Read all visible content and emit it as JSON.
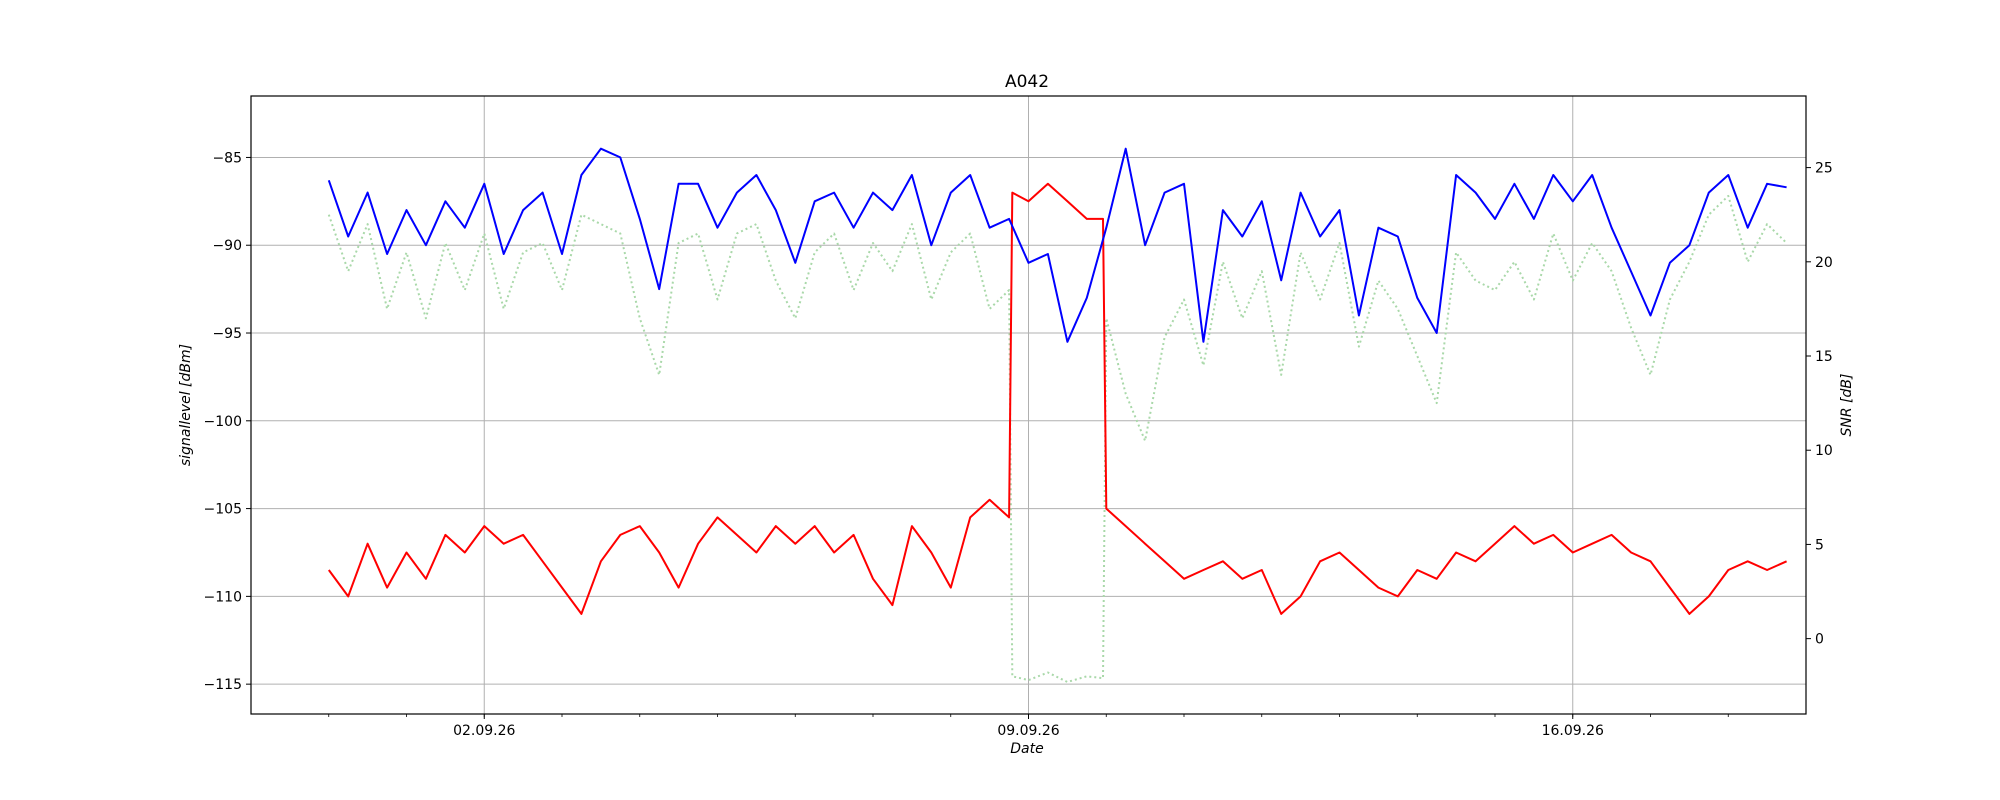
{
  "chart_data": {
    "type": "line",
    "title": "A042",
    "xlabel": "Date",
    "ylabel": "signallevel [dBm]",
    "y2label": "SNR [dB]",
    "grid": true,
    "x_range": [
      "2026-08-30",
      "2026-09-19"
    ],
    "ylim": [
      -116.7,
      -81.5
    ],
    "y2lim": [
      -4.0,
      28.8
    ],
    "x_ticks": [
      {
        "date": "2026-09-02",
        "label": "02.09.26"
      },
      {
        "date": "2026-09-09",
        "label": "09.09.26"
      },
      {
        "date": "2026-09-16",
        "label": "16.09.26"
      }
    ],
    "y_ticks": [
      -85,
      -90,
      -95,
      -100,
      -105,
      -110,
      -115
    ],
    "y_tick_labels": [
      "−85",
      "−90",
      "−95",
      "−100",
      "−105",
      "−110",
      "−115"
    ],
    "y2_ticks": [
      25,
      20,
      15,
      10,
      5,
      0
    ],
    "y2_tick_labels": [
      "25",
      "20",
      "15",
      "10",
      "5",
      "0"
    ],
    "series": [
      {
        "axis": "left",
        "color": "#0000ff",
        "style": "solid",
        "points": [
          [
            "2026-08-31 00:00",
            -86.3
          ],
          [
            "2026-08-31 06:00",
            -89.5
          ],
          [
            "2026-08-31 12:00",
            -87.0
          ],
          [
            "2026-08-31 18:00",
            -90.5
          ],
          [
            "2026-09-01 00:00",
            -88.0
          ],
          [
            "2026-09-01 06:00",
            -90.0
          ],
          [
            "2026-09-01 12:00",
            -87.5
          ],
          [
            "2026-09-01 18:00",
            -89.0
          ],
          [
            "2026-09-02 00:00",
            -86.5
          ],
          [
            "2026-09-02 06:00",
            -90.5
          ],
          [
            "2026-09-02 12:00",
            -88.0
          ],
          [
            "2026-09-02 18:00",
            -87.0
          ],
          [
            "2026-09-03 00:00",
            -90.5
          ],
          [
            "2026-09-03 06:00",
            -86.0
          ],
          [
            "2026-09-03 12:00",
            -84.5
          ],
          [
            "2026-09-03 18:00",
            -85.0
          ],
          [
            "2026-09-04 00:00",
            -88.5
          ],
          [
            "2026-09-04 06:00",
            -92.5
          ],
          [
            "2026-09-04 12:00",
            -86.5
          ],
          [
            "2026-09-04 18:00",
            -86.5
          ],
          [
            "2026-09-05 00:00",
            -89.0
          ],
          [
            "2026-09-05 06:00",
            -87.0
          ],
          [
            "2026-09-05 12:00",
            -86.0
          ],
          [
            "2026-09-05 18:00",
            -88.0
          ],
          [
            "2026-09-06 00:00",
            -91.0
          ],
          [
            "2026-09-06 06:00",
            -87.5
          ],
          [
            "2026-09-06 12:00",
            -87.0
          ],
          [
            "2026-09-06 18:00",
            -89.0
          ],
          [
            "2026-09-07 00:00",
            -87.0
          ],
          [
            "2026-09-07 06:00",
            -88.0
          ],
          [
            "2026-09-07 12:00",
            -86.0
          ],
          [
            "2026-09-07 18:00",
            -90.0
          ],
          [
            "2026-09-08 00:00",
            -87.0
          ],
          [
            "2026-09-08 06:00",
            -86.0
          ],
          [
            "2026-09-08 12:00",
            -89.0
          ],
          [
            "2026-09-08 18:00",
            -88.5
          ],
          [
            "2026-09-09 00:00",
            -91.0
          ],
          [
            "2026-09-09 06:00",
            -90.5
          ],
          [
            "2026-09-09 12:00",
            -95.5
          ],
          [
            "2026-09-09 18:00",
            -93.0
          ],
          [
            "2026-09-10 00:00",
            -89.0
          ],
          [
            "2026-09-10 06:00",
            -84.5
          ],
          [
            "2026-09-10 12:00",
            -90.0
          ],
          [
            "2026-09-10 18:00",
            -87.0
          ],
          [
            "2026-09-11 00:00",
            -86.5
          ],
          [
            "2026-09-11 06:00",
            -95.5
          ],
          [
            "2026-09-11 12:00",
            -88.0
          ],
          [
            "2026-09-11 18:00",
            -89.5
          ],
          [
            "2026-09-12 00:00",
            -87.5
          ],
          [
            "2026-09-12 06:00",
            -92.0
          ],
          [
            "2026-09-12 12:00",
            -87.0
          ],
          [
            "2026-09-12 18:00",
            -89.5
          ],
          [
            "2026-09-13 00:00",
            -88.0
          ],
          [
            "2026-09-13 06:00",
            -94.0
          ],
          [
            "2026-09-13 12:00",
            -89.0
          ],
          [
            "2026-09-13 18:00",
            -89.5
          ],
          [
            "2026-09-14 00:00",
            -93.0
          ],
          [
            "2026-09-14 06:00",
            -95.0
          ],
          [
            "2026-09-14 12:00",
            -86.0
          ],
          [
            "2026-09-14 18:00",
            -87.0
          ],
          [
            "2026-09-15 00:00",
            -88.5
          ],
          [
            "2026-09-15 06:00",
            -86.5
          ],
          [
            "2026-09-15 12:00",
            -88.5
          ],
          [
            "2026-09-15 18:00",
            -86.0
          ],
          [
            "2026-09-16 00:00",
            -87.5
          ],
          [
            "2026-09-16 06:00",
            -86.0
          ],
          [
            "2026-09-16 12:00",
            -89.0
          ],
          [
            "2026-09-16 18:00",
            -91.5
          ],
          [
            "2026-09-17 00:00",
            -94.0
          ],
          [
            "2026-09-17 06:00",
            -91.0
          ],
          [
            "2026-09-17 12:00",
            -90.0
          ],
          [
            "2026-09-17 18:00",
            -87.0
          ],
          [
            "2026-09-18 00:00",
            -86.0
          ],
          [
            "2026-09-18 06:00",
            -89.0
          ],
          [
            "2026-09-18 12:00",
            -86.5
          ],
          [
            "2026-09-18 18:00",
            -86.7
          ]
        ]
      },
      {
        "axis": "left",
        "color": "#ff0000",
        "style": "solid",
        "points": [
          [
            "2026-08-31 00:00",
            -108.5
          ],
          [
            "2026-08-31 06:00",
            -110.0
          ],
          [
            "2026-08-31 12:00",
            -107.0
          ],
          [
            "2026-08-31 18:00",
            -109.5
          ],
          [
            "2026-09-01 00:00",
            -107.5
          ],
          [
            "2026-09-01 06:00",
            -109.0
          ],
          [
            "2026-09-01 12:00",
            -106.5
          ],
          [
            "2026-09-01 18:00",
            -107.5
          ],
          [
            "2026-09-02 00:00",
            -106.0
          ],
          [
            "2026-09-02 06:00",
            -107.0
          ],
          [
            "2026-09-02 12:00",
            -106.5
          ],
          [
            "2026-09-02 18:00",
            -108.0
          ],
          [
            "2026-09-03 00:00",
            -109.5
          ],
          [
            "2026-09-03 06:00",
            -111.0
          ],
          [
            "2026-09-03 12:00",
            -108.0
          ],
          [
            "2026-09-03 18:00",
            -106.5
          ],
          [
            "2026-09-04 00:00",
            -106.0
          ],
          [
            "2026-09-04 06:00",
            -107.5
          ],
          [
            "2026-09-04 12:00",
            -109.5
          ],
          [
            "2026-09-04 18:00",
            -107.0
          ],
          [
            "2026-09-05 00:00",
            -105.5
          ],
          [
            "2026-09-05 06:00",
            -106.5
          ],
          [
            "2026-09-05 12:00",
            -107.5
          ],
          [
            "2026-09-05 18:00",
            -106.0
          ],
          [
            "2026-09-06 00:00",
            -107.0
          ],
          [
            "2026-09-06 06:00",
            -106.0
          ],
          [
            "2026-09-06 12:00",
            -107.5
          ],
          [
            "2026-09-06 18:00",
            -106.5
          ],
          [
            "2026-09-07 00:00",
            -109.0
          ],
          [
            "2026-09-07 06:00",
            -110.5
          ],
          [
            "2026-09-07 12:00",
            -106.0
          ],
          [
            "2026-09-07 18:00",
            -107.5
          ],
          [
            "2026-09-08 00:00",
            -109.5
          ],
          [
            "2026-09-08 06:00",
            -105.5
          ],
          [
            "2026-09-08 12:00",
            -104.5
          ],
          [
            "2026-09-08 18:00",
            -105.5
          ],
          [
            "2026-09-08 19:00",
            -87.0
          ],
          [
            "2026-09-09 00:00",
            -87.5
          ],
          [
            "2026-09-09 06:00",
            -86.5
          ],
          [
            "2026-09-09 12:00",
            -87.5
          ],
          [
            "2026-09-09 18:00",
            -88.5
          ],
          [
            "2026-09-09 23:00",
            -88.5
          ],
          [
            "2026-09-10 00:00",
            -105.0
          ],
          [
            "2026-09-10 06:00",
            -106.0
          ],
          [
            "2026-09-10 12:00",
            -107.0
          ],
          [
            "2026-09-10 18:00",
            -108.0
          ],
          [
            "2026-09-11 00:00",
            -109.0
          ],
          [
            "2026-09-11 06:00",
            -108.5
          ],
          [
            "2026-09-11 12:00",
            -108.0
          ],
          [
            "2026-09-11 18:00",
            -109.0
          ],
          [
            "2026-09-12 00:00",
            -108.5
          ],
          [
            "2026-09-12 06:00",
            -111.0
          ],
          [
            "2026-09-12 12:00",
            -110.0
          ],
          [
            "2026-09-12 18:00",
            -108.0
          ],
          [
            "2026-09-13 00:00",
            -107.5
          ],
          [
            "2026-09-13 06:00",
            -108.5
          ],
          [
            "2026-09-13 12:00",
            -109.5
          ],
          [
            "2026-09-13 18:00",
            -110.0
          ],
          [
            "2026-09-14 00:00",
            -108.5
          ],
          [
            "2026-09-14 06:00",
            -109.0
          ],
          [
            "2026-09-14 12:00",
            -107.5
          ],
          [
            "2026-09-14 18:00",
            -108.0
          ],
          [
            "2026-09-15 00:00",
            -107.0
          ],
          [
            "2026-09-15 06:00",
            -106.0
          ],
          [
            "2026-09-15 12:00",
            -107.0
          ],
          [
            "2026-09-15 18:00",
            -106.5
          ],
          [
            "2026-09-16 00:00",
            -107.5
          ],
          [
            "2026-09-16 06:00",
            -107.0
          ],
          [
            "2026-09-16 12:00",
            -106.5
          ],
          [
            "2026-09-16 18:00",
            -107.5
          ],
          [
            "2026-09-17 00:00",
            -108.0
          ],
          [
            "2026-09-17 06:00",
            -109.5
          ],
          [
            "2026-09-17 12:00",
            -111.0
          ],
          [
            "2026-09-17 18:00",
            -110.0
          ],
          [
            "2026-09-18 00:00",
            -108.5
          ],
          [
            "2026-09-18 06:00",
            -108.0
          ],
          [
            "2026-09-18 12:00",
            -108.5
          ],
          [
            "2026-09-18 18:00",
            -108.0
          ]
        ]
      },
      {
        "axis": "right",
        "color": "#a9d8a9",
        "style": "dotted",
        "points": [
          [
            "2026-08-31 00:00",
            22.5
          ],
          [
            "2026-08-31 06:00",
            19.5
          ],
          [
            "2026-08-31 12:00",
            22.0
          ],
          [
            "2026-08-31 18:00",
            17.5
          ],
          [
            "2026-09-01 00:00",
            20.5
          ],
          [
            "2026-09-01 06:00",
            17.0
          ],
          [
            "2026-09-01 12:00",
            21.0
          ],
          [
            "2026-09-01 18:00",
            18.5
          ],
          [
            "2026-09-02 00:00",
            21.5
          ],
          [
            "2026-09-02 06:00",
            17.5
          ],
          [
            "2026-09-02 12:00",
            20.5
          ],
          [
            "2026-09-02 18:00",
            21.0
          ],
          [
            "2026-09-03 00:00",
            18.5
          ],
          [
            "2026-09-03 06:00",
            22.5
          ],
          [
            "2026-09-03 12:00",
            22.0
          ],
          [
            "2026-09-03 18:00",
            21.5
          ],
          [
            "2026-09-04 00:00",
            17.0
          ],
          [
            "2026-09-04 06:00",
            14.0
          ],
          [
            "2026-09-04 12:00",
            21.0
          ],
          [
            "2026-09-04 18:00",
            21.5
          ],
          [
            "2026-09-05 00:00",
            18.0
          ],
          [
            "2026-09-05 06:00",
            21.5
          ],
          [
            "2026-09-05 12:00",
            22.0
          ],
          [
            "2026-09-05 18:00",
            19.0
          ],
          [
            "2026-09-06 00:00",
            17.0
          ],
          [
            "2026-09-06 06:00",
            20.5
          ],
          [
            "2026-09-06 12:00",
            21.5
          ],
          [
            "2026-09-06 18:00",
            18.5
          ],
          [
            "2026-09-07 00:00",
            21.0
          ],
          [
            "2026-09-07 06:00",
            19.5
          ],
          [
            "2026-09-07 12:00",
            22.0
          ],
          [
            "2026-09-07 18:00",
            18.0
          ],
          [
            "2026-09-08 00:00",
            20.5
          ],
          [
            "2026-09-08 06:00",
            21.5
          ],
          [
            "2026-09-08 12:00",
            17.5
          ],
          [
            "2026-09-08 18:00",
            18.5
          ],
          [
            "2026-09-08 19:00",
            -2.0
          ],
          [
            "2026-09-09 00:00",
            -2.2
          ],
          [
            "2026-09-09 06:00",
            -1.8
          ],
          [
            "2026-09-09 12:00",
            -2.3
          ],
          [
            "2026-09-09 18:00",
            -2.0
          ],
          [
            "2026-09-09 23:00",
            -2.1
          ],
          [
            "2026-09-10 00:00",
            17.0
          ],
          [
            "2026-09-10 06:00",
            13.0
          ],
          [
            "2026-09-10 12:00",
            10.5
          ],
          [
            "2026-09-10 18:00",
            16.0
          ],
          [
            "2026-09-11 00:00",
            18.0
          ],
          [
            "2026-09-11 06:00",
            14.5
          ],
          [
            "2026-09-11 12:00",
            20.0
          ],
          [
            "2026-09-11 18:00",
            17.0
          ],
          [
            "2026-09-12 00:00",
            19.5
          ],
          [
            "2026-09-12 06:00",
            14.0
          ],
          [
            "2026-09-12 12:00",
            20.5
          ],
          [
            "2026-09-12 18:00",
            18.0
          ],
          [
            "2026-09-13 00:00",
            21.0
          ],
          [
            "2026-09-13 06:00",
            15.5
          ],
          [
            "2026-09-13 12:00",
            19.0
          ],
          [
            "2026-09-13 18:00",
            17.5
          ],
          [
            "2026-09-14 00:00",
            15.0
          ],
          [
            "2026-09-14 06:00",
            12.5
          ],
          [
            "2026-09-14 12:00",
            20.5
          ],
          [
            "2026-09-14 18:00",
            19.0
          ],
          [
            "2026-09-15 00:00",
            18.5
          ],
          [
            "2026-09-15 06:00",
            20.0
          ],
          [
            "2026-09-15 12:00",
            18.0
          ],
          [
            "2026-09-15 18:00",
            21.5
          ],
          [
            "2026-09-16 00:00",
            19.0
          ],
          [
            "2026-09-16 06:00",
            21.0
          ],
          [
            "2026-09-16 12:00",
            19.5
          ],
          [
            "2026-09-16 18:00",
            16.5
          ],
          [
            "2026-09-17 00:00",
            14.0
          ],
          [
            "2026-09-17 06:00",
            18.0
          ],
          [
            "2026-09-17 12:00",
            20.0
          ],
          [
            "2026-09-17 18:00",
            22.5
          ],
          [
            "2026-09-18 00:00",
            23.5
          ],
          [
            "2026-09-18 06:00",
            20.0
          ],
          [
            "2026-09-18 12:00",
            22.0
          ],
          [
            "2026-09-18 18:00",
            21.0
          ]
        ]
      }
    ]
  }
}
